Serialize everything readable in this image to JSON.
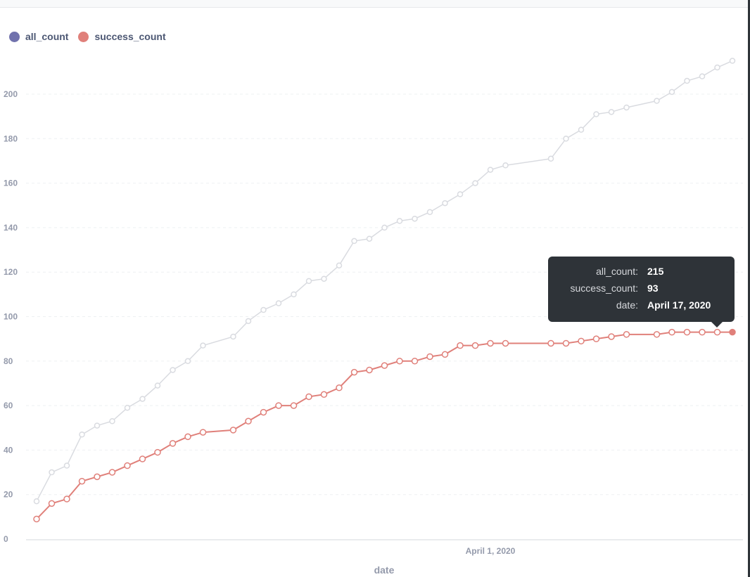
{
  "chart_data": {
    "type": "line",
    "xlabel": "date",
    "ylabel": "",
    "ylim": [
      0,
      215
    ],
    "yticks": [
      0,
      20,
      40,
      60,
      80,
      100,
      120,
      140,
      160,
      180,
      200
    ],
    "xticks": [
      {
        "date": "2020-04-01",
        "label": "April 1, 2020"
      }
    ],
    "grid": true,
    "legend_position": "top-left",
    "x": [
      "2020-03-02",
      "2020-03-03",
      "2020-03-04",
      "2020-03-05",
      "2020-03-06",
      "2020-03-07",
      "2020-03-08",
      "2020-03-09",
      "2020-03-10",
      "2020-03-11",
      "2020-03-12",
      "2020-03-13",
      "2020-03-15",
      "2020-03-16",
      "2020-03-17",
      "2020-03-18",
      "2020-03-19",
      "2020-03-20",
      "2020-03-21",
      "2020-03-22",
      "2020-03-23",
      "2020-03-24",
      "2020-03-25",
      "2020-03-26",
      "2020-03-27",
      "2020-03-28",
      "2020-03-29",
      "2020-03-30",
      "2020-03-31",
      "2020-04-01",
      "2020-04-02",
      "2020-04-05",
      "2020-04-06",
      "2020-04-07",
      "2020-04-08",
      "2020-04-09",
      "2020-04-10",
      "2020-04-12",
      "2020-04-13",
      "2020-04-14",
      "2020-04-15",
      "2020-04-16",
      "2020-04-17"
    ],
    "series": [
      {
        "name": "all_count",
        "color": "#7172ad",
        "line_color": "#d9dbe0",
        "values": [
          17,
          30,
          33,
          47,
          51,
          53,
          59,
          63,
          69,
          76,
          80,
          87,
          91,
          98,
          103,
          106,
          110,
          116,
          117,
          123,
          134,
          135,
          140,
          143,
          144,
          147,
          151,
          155,
          160,
          166,
          168,
          171,
          180,
          184,
          191,
          192,
          194,
          197,
          201,
          206,
          208,
          212,
          215
        ]
      },
      {
        "name": "success_count",
        "color": "#e0807a",
        "line_color": "#e0807a",
        "values": [
          9,
          16,
          18,
          26,
          28,
          30,
          33,
          36,
          39,
          43,
          46,
          48,
          49,
          53,
          57,
          60,
          60,
          64,
          65,
          68,
          75,
          76,
          78,
          80,
          80,
          82,
          83,
          87,
          87,
          88,
          88,
          88,
          88,
          89,
          90,
          91,
          92,
          92,
          93,
          93,
          93,
          93,
          93
        ]
      }
    ]
  },
  "tooltip": {
    "rows": [
      {
        "key": "all_count:",
        "value": "215"
      },
      {
        "key": "success_count:",
        "value": "93"
      },
      {
        "key": "date:",
        "value": "April 17, 2020"
      }
    ]
  }
}
